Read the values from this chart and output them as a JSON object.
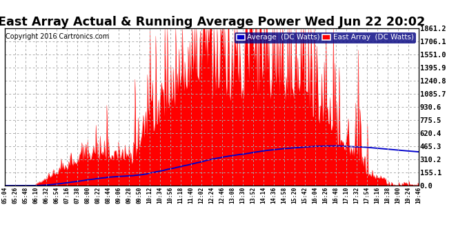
{
  "title": "East Array Actual & Running Average Power Wed Jun 22 20:02",
  "copyright": "Copyright 2016 Cartronics.com",
  "ylabel_right_values": [
    1861.2,
    1706.1,
    1551.0,
    1395.9,
    1240.8,
    1085.7,
    930.6,
    775.5,
    620.4,
    465.3,
    310.2,
    155.1,
    0.0
  ],
  "ymax": 1861.2,
  "ymin": 0.0,
  "bg_color": "#ffffff",
  "plot_bg_color": "#ffffff",
  "grid_color": "#aaaaaa",
  "title_fontsize": 11,
  "east_array_color": "#ff0000",
  "average_color": "#0000cc",
  "x_tick_labels": [
    "05:04",
    "05:26",
    "05:48",
    "06:10",
    "06:32",
    "06:54",
    "07:16",
    "07:38",
    "08:00",
    "08:22",
    "08:44",
    "09:06",
    "09:28",
    "09:50",
    "10:12",
    "10:34",
    "10:56",
    "11:18",
    "11:40",
    "12:02",
    "12:24",
    "12:46",
    "13:08",
    "13:30",
    "13:52",
    "14:14",
    "14:36",
    "14:58",
    "15:20",
    "15:42",
    "16:04",
    "16:26",
    "16:48",
    "17:10",
    "17:32",
    "17:54",
    "18:16",
    "18:38",
    "19:00",
    "19:24",
    "19:46"
  ]
}
